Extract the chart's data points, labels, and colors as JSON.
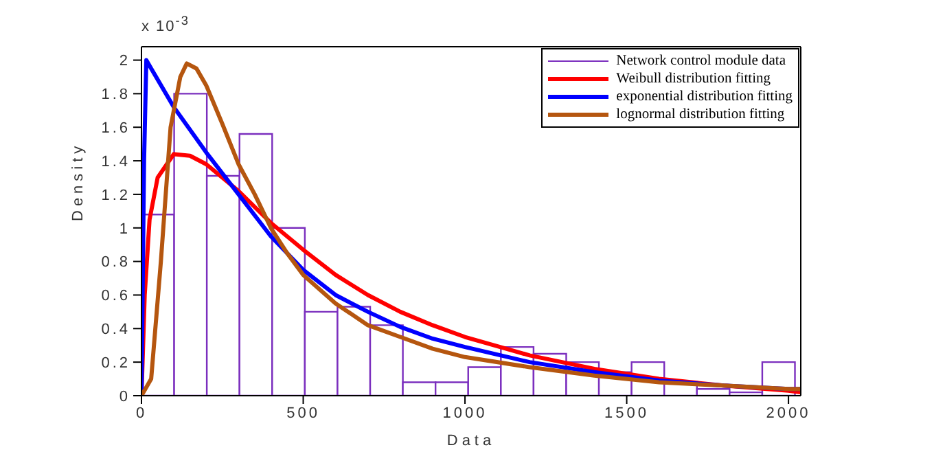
{
  "chart_data": {
    "type": "histogram",
    "xlabel": "Data",
    "ylabel": "Density",
    "annotations": [
      "x 10$^{-3}$"
    ],
    "bins": [
      0,
      101,
      202,
      303,
      404,
      505,
      606,
      707,
      808,
      909,
      1010,
      1111,
      1212,
      1313,
      1414,
      1515,
      1616,
      1717,
      1818,
      1919,
      2020
    ],
    "series": [
      {
        "name": "Network control module data",
        "color": "#7b2fbe",
        "values": [
          1.08,
          1.8,
          1.31,
          1.56,
          1.0,
          0.5,
          0.53,
          0.42,
          0.08,
          0.08,
          0.17,
          0.29,
          0.25,
          0.2,
          0.14,
          0.2,
          0.08,
          0.04,
          0.02,
          0.2
        ]
      },
      {
        "type": "line",
        "name": "Weibull distribution fitting",
        "color": "#ff0000",
        "x": [
          0,
          10,
          25,
          50,
          100,
          150,
          200,
          300,
          400,
          500,
          600,
          700,
          800,
          900,
          1000,
          1200,
          1400,
          1600,
          1800,
          2000,
          2038
        ],
        "values": [
          0,
          0.6,
          1.05,
          1.3,
          1.44,
          1.43,
          1.38,
          1.22,
          1.03,
          0.87,
          0.72,
          0.6,
          0.5,
          0.42,
          0.35,
          0.24,
          0.16,
          0.1,
          0.06,
          0.03,
          0.02
        ]
      },
      {
        "type": "line",
        "name": "exponential distribution fitting",
        "color": "#0000ff",
        "x": [
          0,
          8,
          15,
          30,
          100,
          200,
          300,
          400,
          500,
          600,
          700,
          800,
          900,
          1000,
          1200,
          1400,
          1600,
          1800,
          2000,
          2038
        ],
        "values": [
          0,
          1.4,
          2.0,
          1.95,
          1.72,
          1.45,
          1.2,
          0.95,
          0.75,
          0.6,
          0.5,
          0.41,
          0.34,
          0.29,
          0.2,
          0.14,
          0.09,
          0.06,
          0.04,
          0.04
        ]
      },
      {
        "type": "line",
        "name": "lognormal distribution fitting",
        "color": "#b5560f",
        "x": [
          0,
          30,
          60,
          90,
          120,
          140,
          170,
          200,
          250,
          300,
          350,
          400,
          450,
          500,
          600,
          700,
          800,
          900,
          1000,
          1200,
          1400,
          1600,
          1800,
          2000,
          2038
        ],
        "values": [
          0,
          0.1,
          0.8,
          1.6,
          1.9,
          1.98,
          1.95,
          1.85,
          1.62,
          1.38,
          1.2,
          1.0,
          0.85,
          0.72,
          0.55,
          0.42,
          0.35,
          0.28,
          0.23,
          0.17,
          0.12,
          0.08,
          0.06,
          0.04,
          0.04
        ]
      }
    ],
    "xlim": [
      0,
      2038
    ],
    "xticks": [
      0,
      500,
      1000,
      1500,
      2000
    ],
    "ylim": [
      0,
      2.08
    ],
    "yticks": [
      0,
      0.2,
      0.4,
      0.6,
      0.8,
      1,
      1.2,
      1.4,
      1.6,
      1.8,
      2
    ],
    "legend": "top right",
    "line_style": "solid",
    "marker": "none"
  }
}
